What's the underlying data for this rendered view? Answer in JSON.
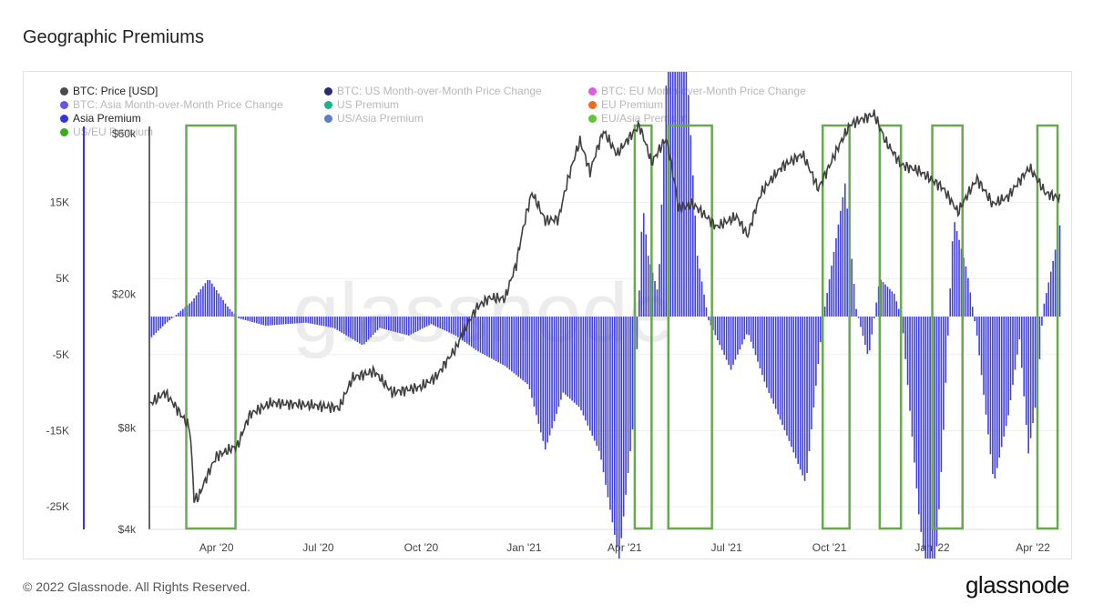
{
  "page": {
    "title": "Geographic Premiums",
    "footer": "© 2022 Glassnode. All Rights Reserved.",
    "brand": "glassnode"
  },
  "colors": {
    "price": "#404040",
    "asia_premium": "#3f3fe6",
    "highlight_box": "#6aa84f",
    "grid": "#efefef",
    "watermark": "#ececec"
  },
  "legend": [
    {
      "label": "BTC: Price [USD]",
      "color": "#4a4a4a",
      "active": true
    },
    {
      "label": "BTC: US Month-over-Month Price Change",
      "color": "#2c2a6e",
      "active": false
    },
    {
      "label": "BTC: EU Month-over-Month Price Change",
      "color": "#e25be0",
      "active": false
    },
    {
      "label": "BTC: Asia Month-over-Month Price Change",
      "color": "#6a55e8",
      "active": false
    },
    {
      "label": "US Premium",
      "color": "#1fb08a",
      "active": false
    },
    {
      "label": "EU Premium",
      "color": "#ee6c1f",
      "active": false
    },
    {
      "label": "Asia Premium",
      "color": "#3535e0",
      "active": true
    },
    {
      "label": "US/Asia Premium",
      "color": "#5b7ec9",
      "active": false
    },
    {
      "label": "EU/Asia Premium",
      "color": "#63c43a",
      "active": false
    },
    {
      "label": "US/EU Premium",
      "color": "#3aad1f",
      "active": false
    }
  ],
  "chart_data": {
    "type": "line",
    "watermark": "glassnode",
    "x_ticks": [
      "Apr '20",
      "Jul '20",
      "Oct '20",
      "Jan '21",
      "Apr '21",
      "Jul '21",
      "Oct '21",
      "Jan '22",
      "Apr '22"
    ],
    "y_left": {
      "ticks": [
        "15K",
        "5K",
        "-5K",
        "-15K",
        "-25K"
      ],
      "values": [
        15000,
        5000,
        -5000,
        -15000,
        -25000
      ],
      "range": [
        -25000,
        25000
      ]
    },
    "y_right": {
      "ticks": [
        "$60k",
        "$20k",
        "$8k",
        "$4k"
      ],
      "values": [
        60000,
        20000,
        8000,
        4000
      ],
      "scale": "log"
    },
    "series": [
      {
        "name": "BTC: Price [USD]",
        "axis": "right",
        "points": [
          [
            "2020-02-01",
            9400
          ],
          [
            "2020-02-15",
            10200
          ],
          [
            "2020-03-01",
            8700
          ],
          [
            "2020-03-08",
            8000
          ],
          [
            "2020-03-12",
            4900
          ],
          [
            "2020-03-16",
            5000
          ],
          [
            "2020-04-01",
            6600
          ],
          [
            "2020-04-20",
            7100
          ],
          [
            "2020-05-01",
            8800
          ],
          [
            "2020-05-20",
            9500
          ],
          [
            "2020-06-15",
            9400
          ],
          [
            "2020-07-20",
            9200
          ],
          [
            "2020-08-01",
            11300
          ],
          [
            "2020-08-20",
            11800
          ],
          [
            "2020-09-05",
            10200
          ],
          [
            "2020-10-01",
            10600
          ],
          [
            "2020-10-15",
            11400
          ],
          [
            "2020-11-01",
            13800
          ],
          [
            "2020-11-20",
            18300
          ],
          [
            "2020-12-01",
            19500
          ],
          [
            "2020-12-15",
            19400
          ],
          [
            "2020-12-25",
            24500
          ],
          [
            "2021-01-08",
            40000
          ],
          [
            "2021-01-20",
            33000
          ],
          [
            "2021-02-01",
            33500
          ],
          [
            "2021-02-20",
            57000
          ],
          [
            "2021-03-01",
            46000
          ],
          [
            "2021-03-13",
            61000
          ],
          [
            "2021-03-25",
            52000
          ],
          [
            "2021-04-14",
            63500
          ],
          [
            "2021-04-25",
            49000
          ],
          [
            "2021-05-08",
            58000
          ],
          [
            "2021-05-19",
            36000
          ],
          [
            "2021-06-01",
            37000
          ],
          [
            "2021-06-22",
            31700
          ],
          [
            "2021-07-10",
            34000
          ],
          [
            "2021-07-20",
            29800
          ],
          [
            "2021-08-01",
            40000
          ],
          [
            "2021-08-20",
            48000
          ],
          [
            "2021-09-07",
            52000
          ],
          [
            "2021-09-21",
            41000
          ],
          [
            "2021-10-01",
            48000
          ],
          [
            "2021-10-20",
            64000
          ],
          [
            "2021-11-10",
            68500
          ],
          [
            "2021-11-20",
            57000
          ],
          [
            "2021-12-04",
            48500
          ],
          [
            "2021-12-20",
            46500
          ],
          [
            "2022-01-10",
            41500
          ],
          [
            "2022-01-24",
            35000
          ],
          [
            "2022-02-10",
            44000
          ],
          [
            "2022-02-24",
            37000
          ],
          [
            "2022-03-10",
            39000
          ],
          [
            "2022-03-29",
            47500
          ],
          [
            "2022-04-12",
            40000
          ],
          [
            "2022-04-25",
            38500
          ]
        ]
      },
      {
        "name": "Asia Premium",
        "axis": "left",
        "points": [
          [
            "2020-02-01",
            -3000
          ],
          [
            "2020-02-15",
            -1000
          ],
          [
            "2020-03-10",
            2000
          ],
          [
            "2020-03-25",
            5000
          ],
          [
            "2020-04-10",
            1500
          ],
          [
            "2020-04-20",
            -200
          ],
          [
            "2020-05-15",
            -1200
          ],
          [
            "2020-06-20",
            -800
          ],
          [
            "2020-07-15",
            -1500
          ],
          [
            "2020-08-10",
            -3800
          ],
          [
            "2020-08-25",
            -1500
          ],
          [
            "2020-09-20",
            -2500
          ],
          [
            "2020-10-10",
            -1000
          ],
          [
            "2020-11-01",
            -2500
          ],
          [
            "2020-11-20",
            -4500
          ],
          [
            "2020-12-15",
            -6500
          ],
          [
            "2021-01-05",
            -9000
          ],
          [
            "2021-01-20",
            -17500
          ],
          [
            "2021-02-05",
            -10000
          ],
          [
            "2021-02-20",
            -12000
          ],
          [
            "2021-03-10",
            -18000
          ],
          [
            "2021-03-27",
            -32000
          ],
          [
            "2021-04-10",
            -12000
          ],
          [
            "2021-04-17",
            15000
          ],
          [
            "2021-04-22",
            8000
          ],
          [
            "2021-05-01",
            3000
          ],
          [
            "2021-05-12",
            46000
          ],
          [
            "2021-05-22",
            45000
          ],
          [
            "2021-06-05",
            8000
          ],
          [
            "2021-06-15",
            -500
          ],
          [
            "2021-07-05",
            -7000
          ],
          [
            "2021-07-20",
            -2000
          ],
          [
            "2021-08-05",
            -9000
          ],
          [
            "2021-08-25",
            -16000
          ],
          [
            "2021-09-10",
            -22000
          ],
          [
            "2021-09-25",
            -500
          ],
          [
            "2021-10-15",
            17500
          ],
          [
            "2021-10-25",
            1000
          ],
          [
            "2021-11-05",
            -5500
          ],
          [
            "2021-11-15",
            5000
          ],
          [
            "2021-11-28",
            3000
          ],
          [
            "2021-12-05",
            -500
          ],
          [
            "2021-12-20",
            -26000
          ],
          [
            "2022-01-01",
            -40000
          ],
          [
            "2022-01-10",
            -18000
          ],
          [
            "2022-01-20",
            13000
          ],
          [
            "2022-02-01",
            6000
          ],
          [
            "2022-02-10",
            -2500
          ],
          [
            "2022-02-25",
            -22000
          ],
          [
            "2022-03-10",
            -13000
          ],
          [
            "2022-03-20",
            -3000
          ],
          [
            "2022-03-28",
            -18000
          ],
          [
            "2022-04-05",
            -10000
          ],
          [
            "2022-04-10",
            1000
          ],
          [
            "2022-04-20",
            8000
          ],
          [
            "2022-04-25",
            12000
          ]
        ]
      }
    ],
    "highlight_ranges": [
      [
        "2020-03-05",
        "2020-04-18"
      ],
      [
        "2021-04-10",
        "2021-04-25"
      ],
      [
        "2021-05-10",
        "2021-06-18"
      ],
      [
        "2021-09-25",
        "2021-10-19"
      ],
      [
        "2021-11-15",
        "2021-12-04"
      ],
      [
        "2022-01-01",
        "2022-01-28"
      ],
      [
        "2022-04-05",
        "2022-04-23"
      ]
    ]
  }
}
